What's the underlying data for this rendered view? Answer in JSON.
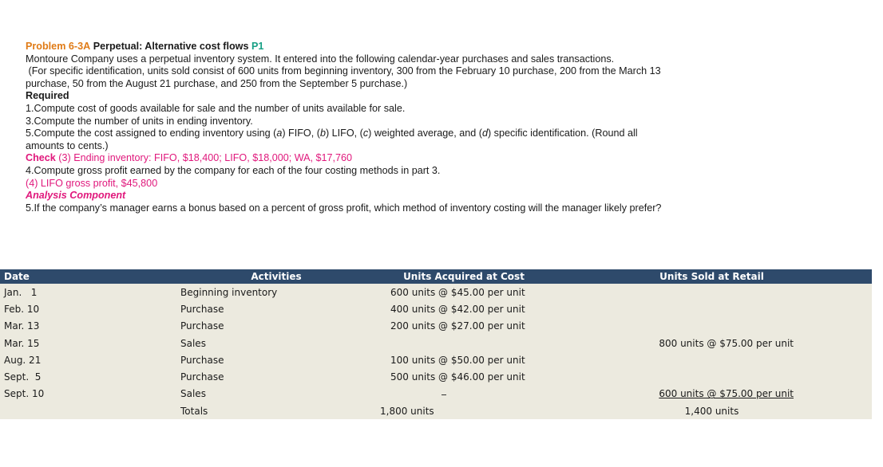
{
  "problem": {
    "number_label": "Problem 6-3A",
    "title": "Perpetual: Alternative cost flows",
    "objective": "P1",
    "intro": "Montoure Company uses a perpetual inventory system. It entered into the following calendar-year purchases and sales transactions.",
    "note_line1": " (For specific identification, units sold consist of 600 units from beginning inventory, 300 from the February 10 purchase, 200 from the March 13",
    "note_line2": "purchase, 50 from the August 21 purchase, and 250 from the September 5 purchase.)",
    "required_label": "Required",
    "req1": "1.Compute cost of goods available for sale and the number of units available for sale.",
    "req3": "3.Compute the number of units in ending inventory.",
    "req5a_pre": "5.Compute the cost assigned to ending inventory using (",
    "req5a_a": "a",
    "req5a_1": ") FIFO, (",
    "req5a_b": "b",
    "req5a_2": ") LIFO, (",
    "req5a_c": "c",
    "req5a_3": ") weighted average, and (",
    "req5a_d": "d",
    "req5a_4": ") specific identification. (Round all",
    "req5a_cont": "amounts to cents.)",
    "check1_label": "Check",
    "check1_text": " (3) Ending inventory: FIFO, $18,400; LIFO, $18,000; WA, $17,760",
    "req4": "4.Compute gross profit earned by the company for each of the four costing methods in part 3.",
    "check2_text": "(4) LIFO gross profit, $45,800",
    "analysis_label": "Analysis Component",
    "req5b": "5.If the company’s manager earns a bonus based on a percent of gross profit, which method of inventory costing will the manager likely prefer?"
  },
  "table": {
    "headers": {
      "date": "Date",
      "activities": "Activities",
      "acquired": "Units Acquired at Cost",
      "sold": "Units Sold at Retail"
    },
    "rows": [
      {
        "date": "Jan.   1",
        "activity": "Beginning inventory",
        "acquired": "600 units @ $45.00 per unit",
        "sold": ""
      },
      {
        "date": "Feb. 10",
        "activity": "Purchase",
        "acquired": "400 units @ $42.00 per unit",
        "sold": ""
      },
      {
        "date": "Mar. 13",
        "activity": "Purchase",
        "acquired": "200 units @ $27.00 per unit",
        "sold": ""
      },
      {
        "date": "Mar. 15",
        "activity": "Sales",
        "acquired": "",
        "sold": "800 units @ $75.00 per unit"
      },
      {
        "date": "Aug. 21",
        "activity": "Purchase",
        "acquired": "100 units @ $50.00 per unit",
        "sold": ""
      },
      {
        "date": "Sept.  5",
        "activity": "Purchase",
        "acquired": "500 units @ $46.00 per unit",
        "sold": ""
      },
      {
        "date": "Sept. 10",
        "activity": "Sales",
        "acquired": "",
        "sold": "600 units @ $75.00 per unit"
      }
    ],
    "totals": {
      "date": "",
      "activity": "Totals",
      "acquired": "1,800 units",
      "sold": "1,400 units"
    }
  }
}
